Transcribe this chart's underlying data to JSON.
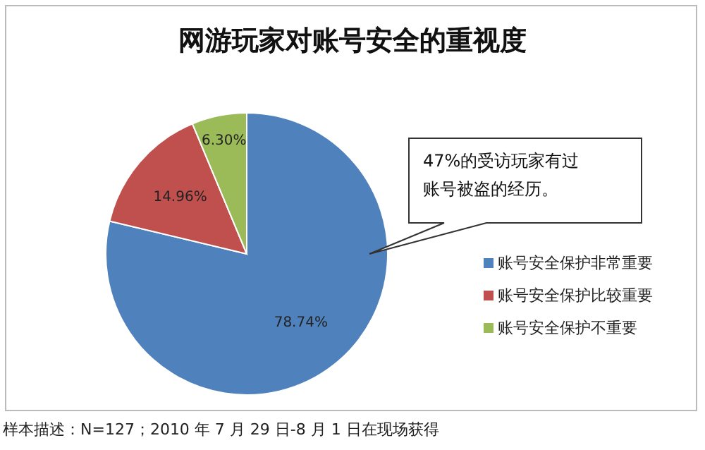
{
  "chart_data": {
    "type": "pie",
    "title": "网游玩家对账号安全的重视度",
    "categories": [
      "账号安全保护非常重要",
      "账号安全保护比较重要",
      "账号安全保护不重要"
    ],
    "values": [
      78.74,
      14.96,
      6.3
    ],
    "colors": [
      "#4f81bd",
      "#c0504d",
      "#9bbb59"
    ],
    "value_labels": [
      "78.74%",
      "14.96%",
      "6.30%"
    ],
    "legend": "right",
    "annotations": [
      "47%的受访玩家有过账号被盗的经历。",
      "样本描述：N=127；2010 年 7 月 29 日-8 月 1 日在现场获得"
    ]
  }
}
